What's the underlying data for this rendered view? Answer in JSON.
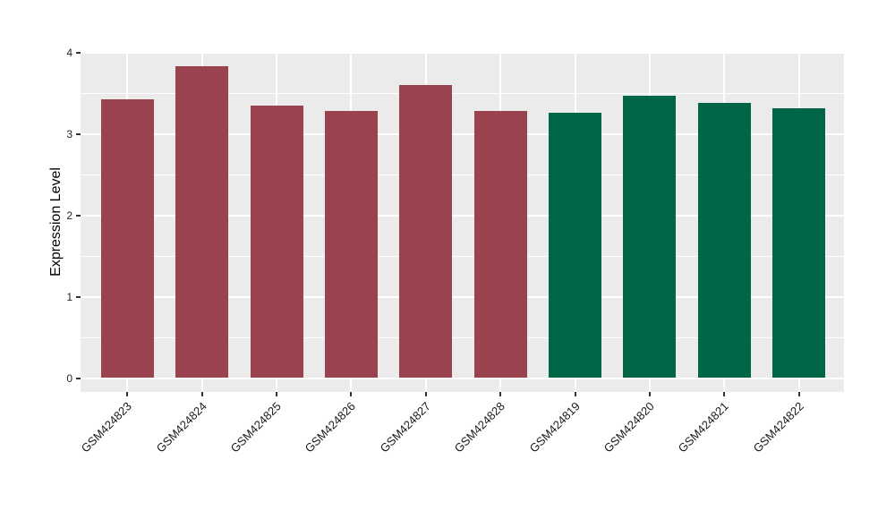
{
  "chart_data": {
    "type": "bar",
    "title": "",
    "xlabel": "",
    "ylabel": "Expression Level",
    "categories": [
      "GSM424823",
      "GSM424824",
      "GSM424825",
      "GSM424826",
      "GSM424827",
      "GSM424828",
      "GSM424819",
      "GSM424820",
      "GSM424821",
      "GSM424822"
    ],
    "values": [
      3.43,
      3.83,
      3.35,
      3.29,
      3.6,
      3.29,
      3.26,
      3.47,
      3.38,
      3.32
    ],
    "bar_groups": [
      "group1",
      "group1",
      "group1",
      "group1",
      "group1",
      "group1",
      "group2",
      "group2",
      "group2",
      "group2"
    ],
    "group_colors": {
      "group1": "#9A434F",
      "group2": "#006647"
    },
    "yticks": [
      0,
      1,
      2,
      3,
      4
    ],
    "minor_yticks": [
      0.5,
      1.5,
      2.5,
      3.5
    ],
    "ylim": [
      0,
      4
    ],
    "grid": true,
    "legend": "none",
    "x_label_rotation_deg": 45,
    "panel_background": "#EBEBEB",
    "gridline_color": "#FFFFFF",
    "tick_color": "#333333",
    "tick_label_color": "#262626",
    "axis_title_color": "#000000"
  }
}
